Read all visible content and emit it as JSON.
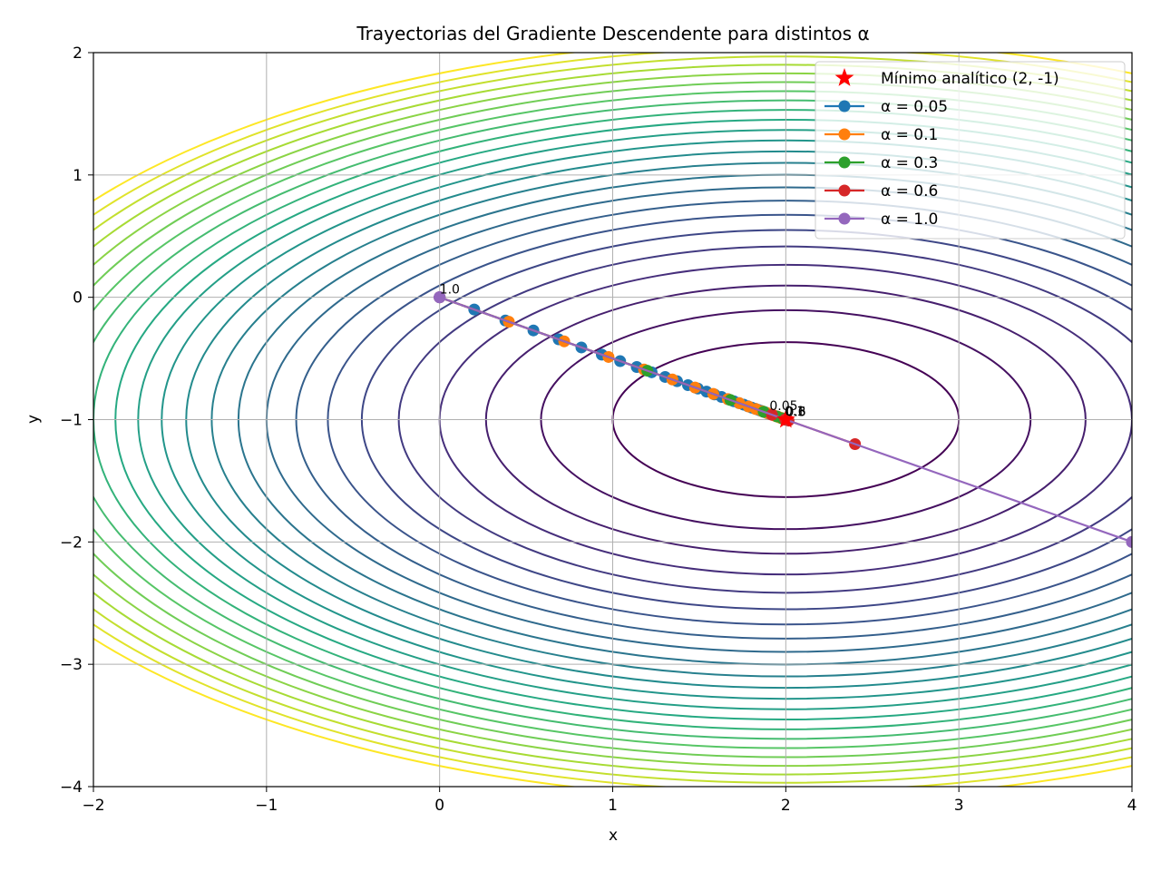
{
  "chart_data": {
    "type": "line",
    "title": "Trayectorias del Gradiente Descendente para distintos α",
    "xlabel": "x",
    "ylabel": "y",
    "xlim": [
      -2,
      4
    ],
    "ylim": [
      -4,
      2
    ],
    "grid": true,
    "legend_position": "top-right",
    "x_ticks": [
      -2,
      -1,
      0,
      1,
      2,
      3,
      4
    ],
    "y_ticks": [
      -4,
      -3,
      -2,
      -1,
      0,
      1,
      2
    ],
    "x_tick_labels": [
      "−2",
      "−1",
      "0",
      "1",
      "2",
      "3",
      "4"
    ],
    "y_tick_labels": [
      "−4",
      "−3",
      "−2",
      "−1",
      "0",
      "1",
      "2"
    ],
    "contour": {
      "center": [
        2,
        -1
      ],
      "levels": 24,
      "colormap": "viridis"
    },
    "minimum": {
      "label": "Mínimo analítico (2, -1)",
      "x": 2,
      "y": -1,
      "marker": "star",
      "color": "#ff0000"
    },
    "series": [
      {
        "name": "α = 0.05",
        "color": "#1f77b4",
        "end_label": "0.05",
        "points": [
          [
            0,
            0
          ],
          [
            0.2,
            -0.1
          ],
          [
            0.38,
            -0.19
          ],
          [
            0.542,
            -0.271
          ],
          [
            0.688,
            -0.344
          ],
          [
            0.819,
            -0.41
          ],
          [
            0.937,
            -0.469
          ],
          [
            1.043,
            -0.522
          ],
          [
            1.139,
            -0.57
          ],
          [
            1.225,
            -0.613
          ],
          [
            1.303,
            -0.651
          ],
          [
            1.372,
            -0.686
          ],
          [
            1.435,
            -0.718
          ],
          [
            1.492,
            -0.746
          ],
          [
            1.542,
            -0.771
          ],
          [
            1.588,
            -0.794
          ],
          [
            1.629,
            -0.815
          ],
          [
            1.666,
            -0.833
          ],
          [
            1.7,
            -0.85
          ],
          [
            1.73,
            -0.865
          ],
          [
            1.757,
            -0.878
          ],
          [
            1.781,
            -0.891
          ],
          [
            1.803,
            -0.902
          ],
          [
            1.823,
            -0.911
          ],
          [
            1.841,
            -0.92
          ],
          [
            1.856,
            -0.928
          ],
          [
            1.871,
            -0.935
          ],
          [
            1.884,
            -0.942
          ],
          [
            1.895,
            -0.948
          ],
          [
            1.906,
            -0.953
          ]
        ]
      },
      {
        "name": "α = 0.1",
        "color": "#ff7f0e",
        "end_label": "0.1",
        "points": [
          [
            0,
            0
          ],
          [
            0.4,
            -0.2
          ],
          [
            0.72,
            -0.36
          ],
          [
            0.976,
            -0.488
          ],
          [
            1.181,
            -0.59
          ],
          [
            1.345,
            -0.672
          ],
          [
            1.476,
            -0.738
          ],
          [
            1.581,
            -0.79
          ],
          [
            1.665,
            -0.832
          ],
          [
            1.732,
            -0.866
          ],
          [
            1.785,
            -0.893
          ],
          [
            1.828,
            -0.914
          ],
          [
            1.863,
            -0.931
          ],
          [
            1.89,
            -0.945
          ],
          [
            1.912,
            -0.956
          ],
          [
            1.93,
            -0.965
          ],
          [
            1.944,
            -0.972
          ],
          [
            1.955,
            -0.977
          ],
          [
            1.964,
            -0.982
          ],
          [
            1.971,
            -0.986
          ],
          [
            1.977,
            -0.988
          ],
          [
            1.982,
            -0.991
          ],
          [
            1.986,
            -0.993
          ],
          [
            1.988,
            -0.994
          ],
          [
            1.991,
            -0.995
          ],
          [
            1.993,
            -0.996
          ]
        ]
      },
      {
        "name": "α = 0.3",
        "color": "#2ca02c",
        "end_label": "0.3",
        "points": [
          [
            0,
            0
          ],
          [
            1.2,
            -0.6
          ],
          [
            1.68,
            -0.84
          ],
          [
            1.872,
            -0.936
          ],
          [
            1.949,
            -0.974
          ],
          [
            1.98,
            -0.99
          ],
          [
            1.992,
            -0.996
          ],
          [
            1.997,
            -0.998
          ],
          [
            1.999,
            -0.999
          ],
          [
            2,
            -1
          ]
        ]
      },
      {
        "name": "α = 0.6",
        "color": "#d62728",
        "end_label": "0.6",
        "points": [
          [
            0,
            0
          ],
          [
            2.4,
            -1.2
          ],
          [
            1.92,
            -0.96
          ],
          [
            2.016,
            -1.008
          ],
          [
            1.997,
            -0.998
          ],
          [
            2.001,
            -1.0
          ],
          [
            2,
            -1
          ]
        ]
      },
      {
        "name": "α = 1.0",
        "color": "#9467bd",
        "end_label": "1.0",
        "points": [
          [
            0,
            0
          ],
          [
            4,
            -2
          ],
          [
            0,
            0
          ],
          [
            4,
            -2
          ],
          [
            0,
            0
          ],
          [
            4,
            -2
          ],
          [
            0,
            0
          ]
        ]
      }
    ]
  }
}
